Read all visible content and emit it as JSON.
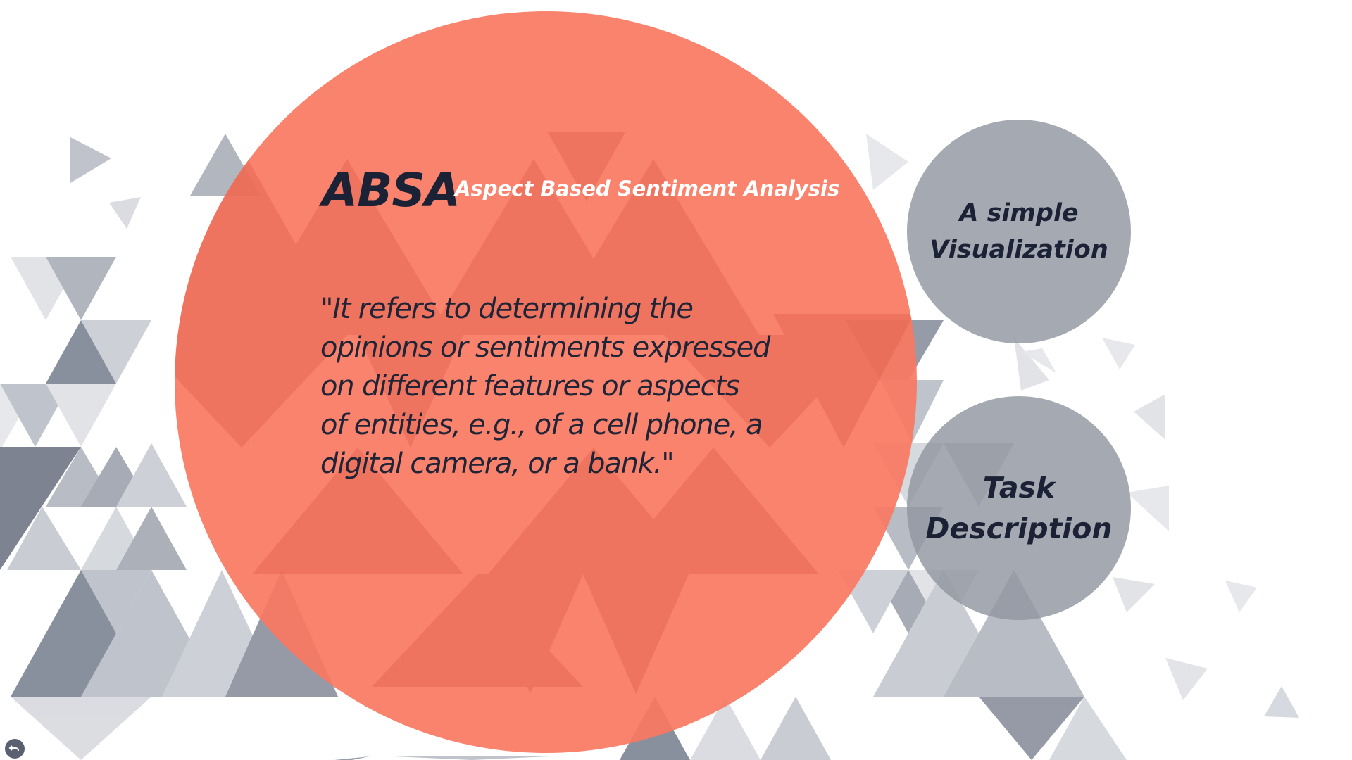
{
  "slide": {
    "title": "ABSA",
    "subtitle": "Aspect Based Sentiment Analysis",
    "quote": "\"It refers to determining the opinions or sentiments expressed on different features or aspects of entities, e.g., of a cell phone, a digital camera, or a bank.\""
  },
  "navigation": {
    "visualization_label": "A simple Visualization",
    "task_label": "Task Description"
  },
  "icons": {
    "back": "back-arrow-icon"
  },
  "colors": {
    "main_circle": "#FA7862",
    "nav_circle": "#9196A0",
    "title_text": "#1B2236",
    "subtitle_text": "#FFFFFF"
  }
}
